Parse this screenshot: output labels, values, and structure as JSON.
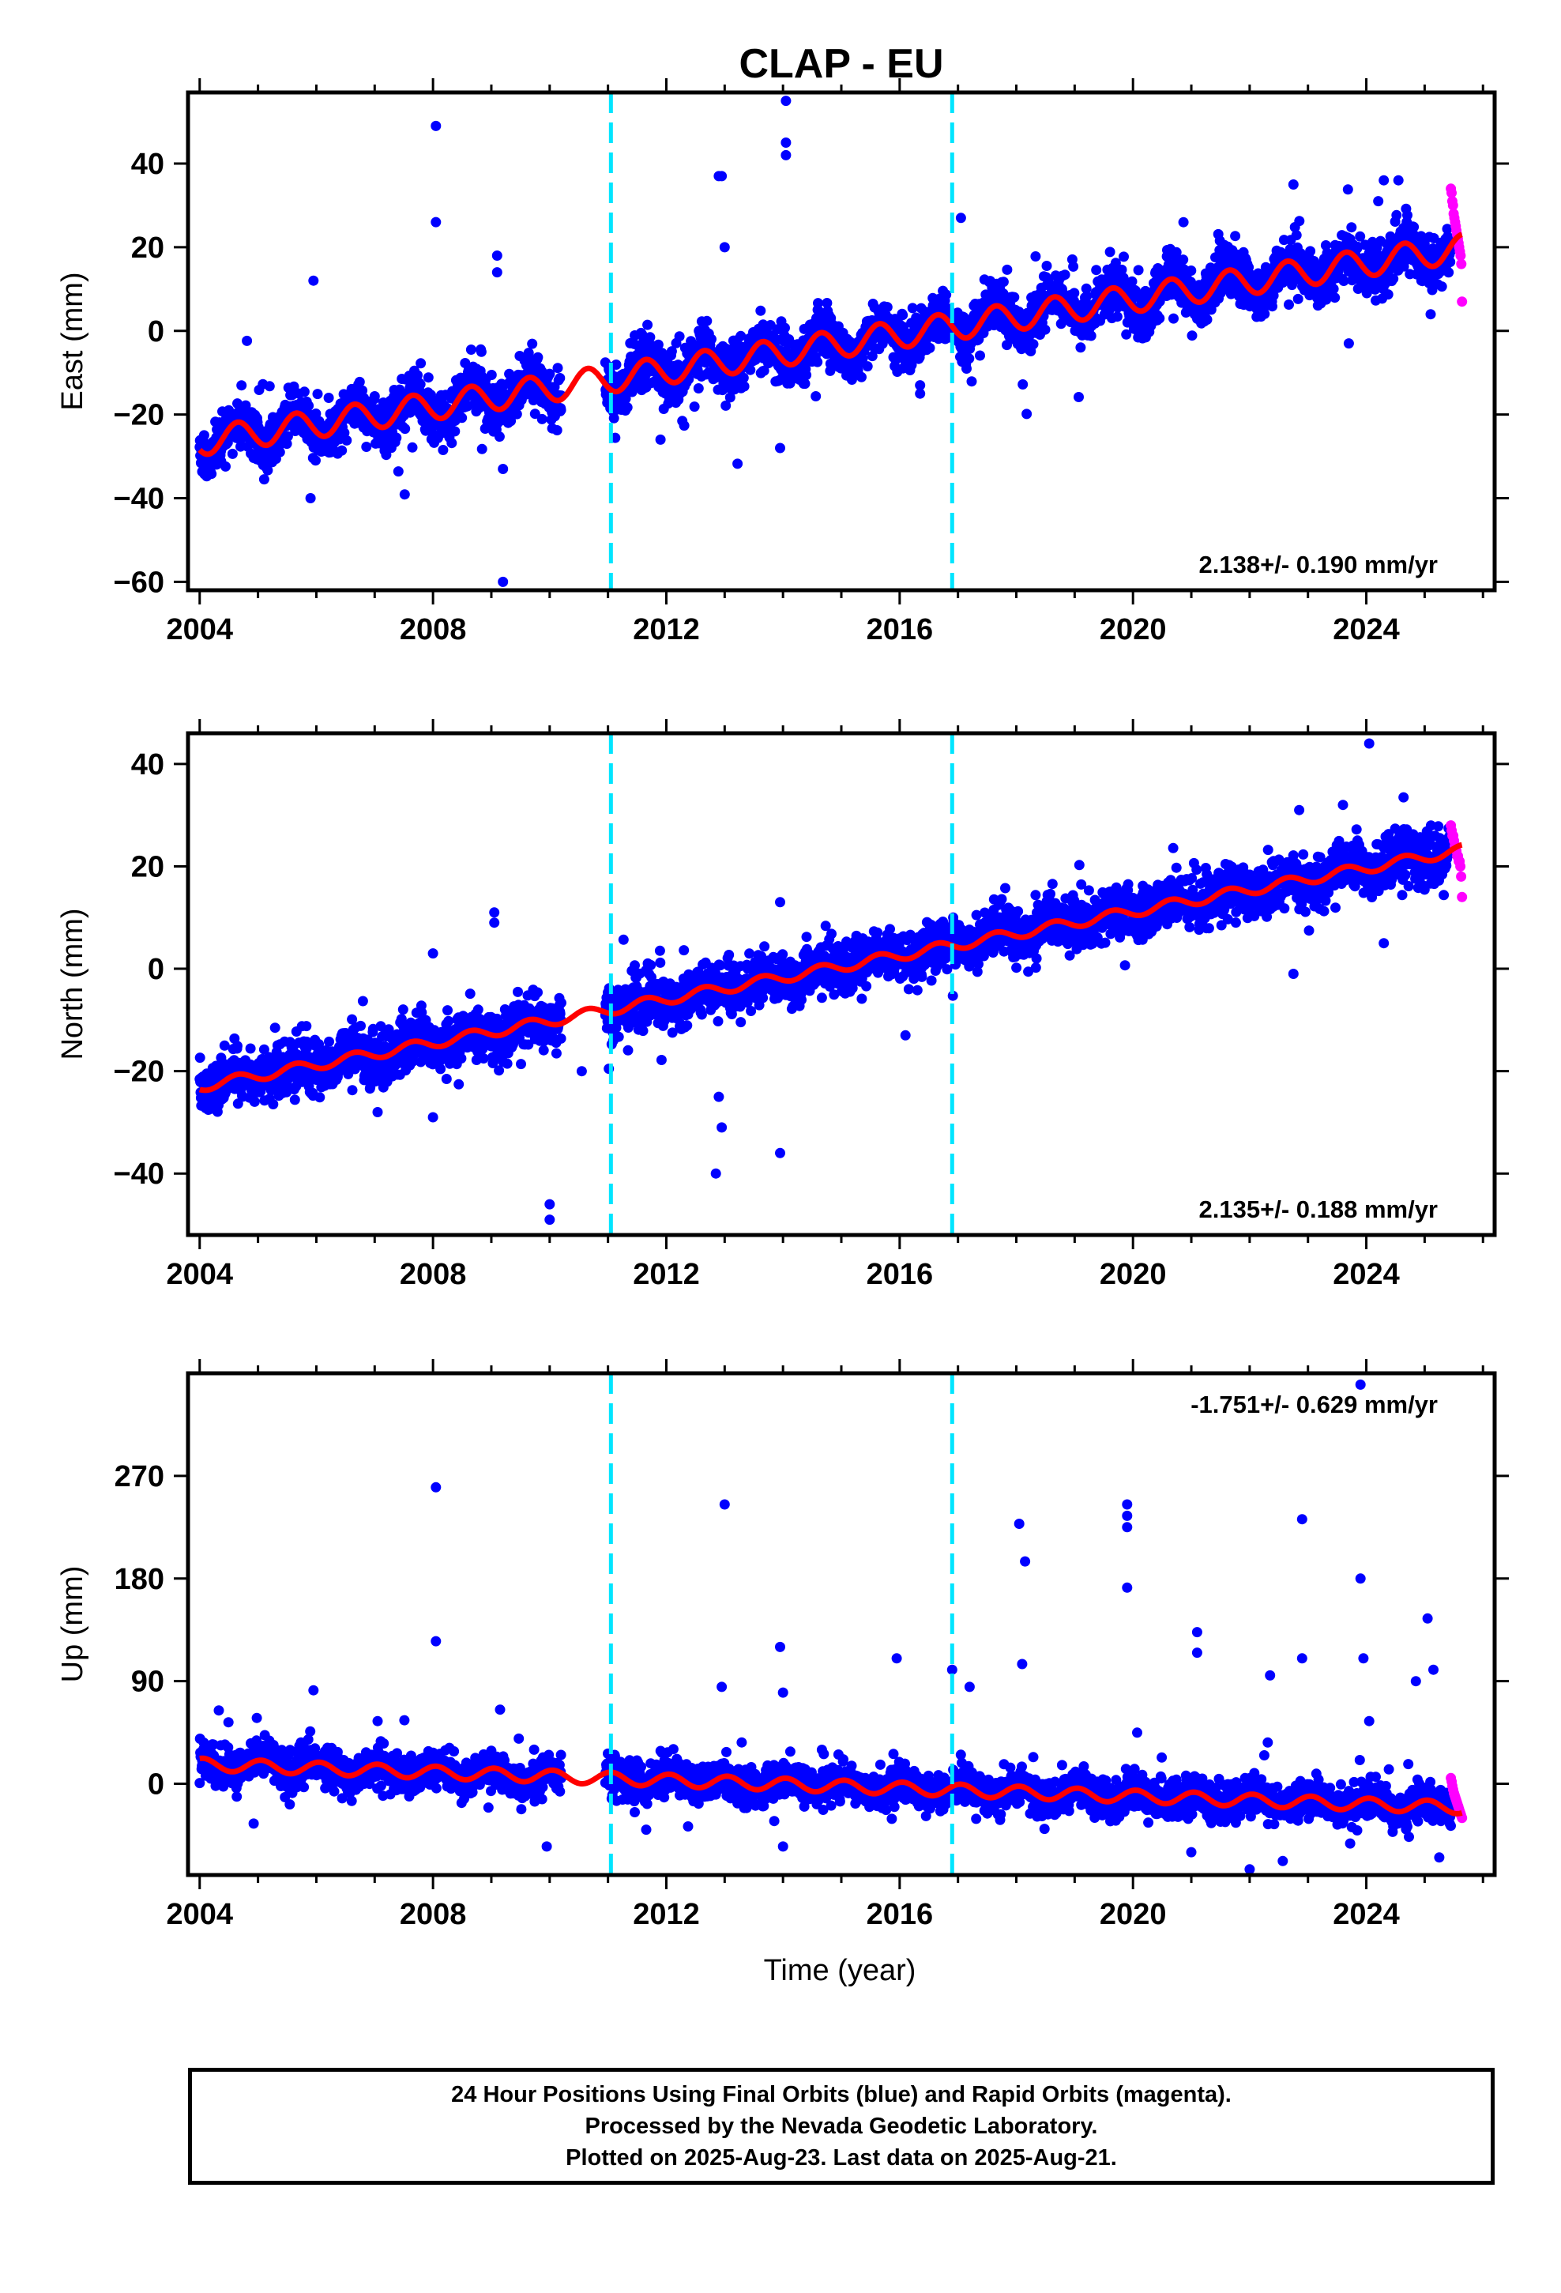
{
  "title": "CLAP - EU",
  "xlabel": "Time (year)",
  "colors": {
    "final_orbits": "#0000ff",
    "rapid_orbits": "#ff00ff",
    "model_fit": "#ff0000",
    "discontinuity": "#00e5ff"
  },
  "footer": {
    "line1": "24 Hour Positions Using Final Orbits (blue) and Rapid Orbits (magenta).",
    "line2": "Processed by the Nevada Geodetic Laboratory.",
    "line3": "Plotted on 2025-Aug-23. Last data on 2025-Aug-21."
  },
  "chart_data": [
    {
      "type": "scatter",
      "component": "east",
      "ylabel": "East (mm)",
      "rate_label": "2.138+/- 0.190 mm/yr",
      "rate_label_position": "bottom-right",
      "xlim": [
        2003.8,
        2026.2
      ],
      "ylim": [
        -62,
        57
      ],
      "xticks": [
        2004,
        2008,
        2012,
        2016,
        2020,
        2024
      ],
      "yticks": [
        -60,
        -40,
        -20,
        0,
        20,
        40
      ],
      "grid": false,
      "discontinuities": [
        2011.05,
        2016.9
      ],
      "data_start": 2004.0,
      "data_gap": [
        2010.2,
        2010.95
      ],
      "rapid_start": 2025.45,
      "data_end": 2025.64,
      "model": {
        "ref_epoch": 2004.0,
        "intercept": -26.5,
        "rate": 2.138,
        "annual_amplitude": 3.3,
        "annual_phase": 0.6,
        "offsets": []
      },
      "scatter_sd": 3.0,
      "outliers": [
        {
          "x": 2008.05,
          "y": 49
        },
        {
          "x": 2008.05,
          "y": 26
        },
        {
          "x": 2005.95,
          "y": 12
        },
        {
          "x": 2005.9,
          "y": -40
        },
        {
          "x": 2009.1,
          "y": 18
        },
        {
          "x": 2009.1,
          "y": 14
        },
        {
          "x": 2009.2,
          "y": -33
        },
        {
          "x": 2009.2,
          "y": -60
        },
        {
          "x": 2012.9,
          "y": 37
        },
        {
          "x": 2012.95,
          "y": 37
        },
        {
          "x": 2014.05,
          "y": 55
        },
        {
          "x": 2014.05,
          "y": 45
        },
        {
          "x": 2014.05,
          "y": 42
        },
        {
          "x": 2013.0,
          "y": 20
        },
        {
          "x": 2013.95,
          "y": -28
        },
        {
          "x": 2011.9,
          "y": -26
        },
        {
          "x": 2016.35,
          "y": -13
        },
        {
          "x": 2016.35,
          "y": -15
        },
        {
          "x": 2017.05,
          "y": 27
        },
        {
          "x": 2022.75,
          "y": 35
        },
        {
          "x": 2024.3,
          "y": 36
        },
        {
          "x": 2024.55,
          "y": 36
        },
        {
          "x": 2023.7,
          "y": -3
        }
      ],
      "rapid_values": [
        34,
        33,
        31,
        30,
        28,
        27,
        26,
        25,
        24,
        23,
        22,
        21,
        20,
        19,
        18,
        16,
        7
      ]
    },
    {
      "type": "scatter",
      "component": "north",
      "ylabel": "North (mm)",
      "rate_label": "2.135+/- 0.188 mm/yr",
      "rate_label_position": "bottom-right",
      "xlim": [
        2003.8,
        2026.2
      ],
      "ylim": [
        -52,
        46
      ],
      "xticks": [
        2004,
        2008,
        2012,
        2016,
        2020,
        2024
      ],
      "yticks": [
        -40,
        -20,
        0,
        20,
        40
      ],
      "grid": false,
      "discontinuities": [
        2011.05,
        2016.9
      ],
      "data_start": 2004.0,
      "data_gap": [
        2010.2,
        2010.95
      ],
      "rapid_start": 2025.45,
      "data_end": 2025.64,
      "model": {
        "ref_epoch": 2004.0,
        "intercept": -23.0,
        "rate": 2.135,
        "annual_amplitude": 1.0,
        "annual_phase": 0.6,
        "offsets": []
      },
      "scatter_sd": 2.4,
      "outliers": [
        {
          "x": 2009.05,
          "y": 11
        },
        {
          "x": 2009.05,
          "y": 9
        },
        {
          "x": 2008.0,
          "y": 3
        },
        {
          "x": 2008.0,
          "y": -29
        },
        {
          "x": 2010.0,
          "y": -46
        },
        {
          "x": 2010.0,
          "y": -49
        },
        {
          "x": 2012.9,
          "y": -25
        },
        {
          "x": 2012.95,
          "y": -31
        },
        {
          "x": 2012.85,
          "y": -40
        },
        {
          "x": 2013.95,
          "y": -36
        },
        {
          "x": 2013.95,
          "y": 13
        },
        {
          "x": 2010.55,
          "y": -20
        },
        {
          "x": 2011.1,
          "y": -7
        },
        {
          "x": 2024.05,
          "y": 44
        },
        {
          "x": 2022.85,
          "y": 31
        },
        {
          "x": 2023.6,
          "y": 32
        },
        {
          "x": 2022.75,
          "y": -1
        },
        {
          "x": 2024.3,
          "y": 5
        },
        {
          "x": 2016.1,
          "y": -13
        },
        {
          "x": 2007.05,
          "y": -28
        }
      ],
      "rapid_values": [
        28,
        27,
        26,
        26,
        25,
        24,
        24,
        23,
        22,
        22,
        21,
        21,
        20,
        18,
        14
      ]
    },
    {
      "type": "scatter",
      "component": "up",
      "ylabel": "Up (mm)",
      "rate_label": "-1.751+/- 0.629 mm/yr",
      "rate_label_position": "top-right",
      "xlim": [
        2003.8,
        2026.2
      ],
      "ylim": [
        -80,
        360
      ],
      "xticks": [
        2004,
        2008,
        2012,
        2016,
        2020,
        2024
      ],
      "yticks": [
        0,
        90,
        180,
        270
      ],
      "grid": false,
      "discontinuities": [
        2011.05,
        2016.9
      ],
      "data_start": 2004.0,
      "data_gap": [
        2010.2,
        2010.95
      ],
      "rapid_start": 2025.45,
      "data_end": 2025.64,
      "model": {
        "ref_epoch": 2004.0,
        "intercept": 17.0,
        "rate": -1.751,
        "annual_amplitude": 5.5,
        "annual_phase": 0.2,
        "offsets": []
      },
      "scatter_sd": 8.0,
      "outliers": [
        {
          "x": 2008.05,
          "y": 260
        },
        {
          "x": 2008.05,
          "y": 125
        },
        {
          "x": 2005.95,
          "y": 82
        },
        {
          "x": 2007.05,
          "y": 55
        },
        {
          "x": 2009.15,
          "y": 65
        },
        {
          "x": 2009.95,
          "y": -55
        },
        {
          "x": 2013.0,
          "y": 245
        },
        {
          "x": 2012.95,
          "y": 85
        },
        {
          "x": 2013.95,
          "y": 120
        },
        {
          "x": 2014.0,
          "y": 80
        },
        {
          "x": 2014.0,
          "y": -55
        },
        {
          "x": 2015.95,
          "y": 110
        },
        {
          "x": 2018.05,
          "y": 228
        },
        {
          "x": 2018.15,
          "y": 195
        },
        {
          "x": 2018.1,
          "y": 105
        },
        {
          "x": 2019.9,
          "y": 245
        },
        {
          "x": 2019.9,
          "y": 235
        },
        {
          "x": 2019.9,
          "y": 225
        },
        {
          "x": 2019.9,
          "y": 172
        },
        {
          "x": 2021.1,
          "y": 133
        },
        {
          "x": 2021.1,
          "y": 115
        },
        {
          "x": 2022.35,
          "y": 95
        },
        {
          "x": 2022.9,
          "y": 232
        },
        {
          "x": 2022.9,
          "y": 110
        },
        {
          "x": 2023.9,
          "y": 350
        },
        {
          "x": 2023.9,
          "y": 180
        },
        {
          "x": 2023.95,
          "y": 110
        },
        {
          "x": 2024.05,
          "y": 55
        },
        {
          "x": 2025.05,
          "y": 145
        },
        {
          "x": 2025.15,
          "y": 100
        },
        {
          "x": 2024.85,
          "y": 90
        },
        {
          "x": 2022.0,
          "y": -75
        },
        {
          "x": 2021.0,
          "y": -60
        },
        {
          "x": 2016.9,
          "y": 100
        },
        {
          "x": 2017.2,
          "y": 85
        }
      ],
      "rapid_values": [
        5,
        2,
        -2,
        -5,
        -8,
        -10,
        -12,
        -14,
        -16,
        -18,
        -20,
        -22,
        -24,
        -26,
        -28,
        -30
      ]
    }
  ]
}
